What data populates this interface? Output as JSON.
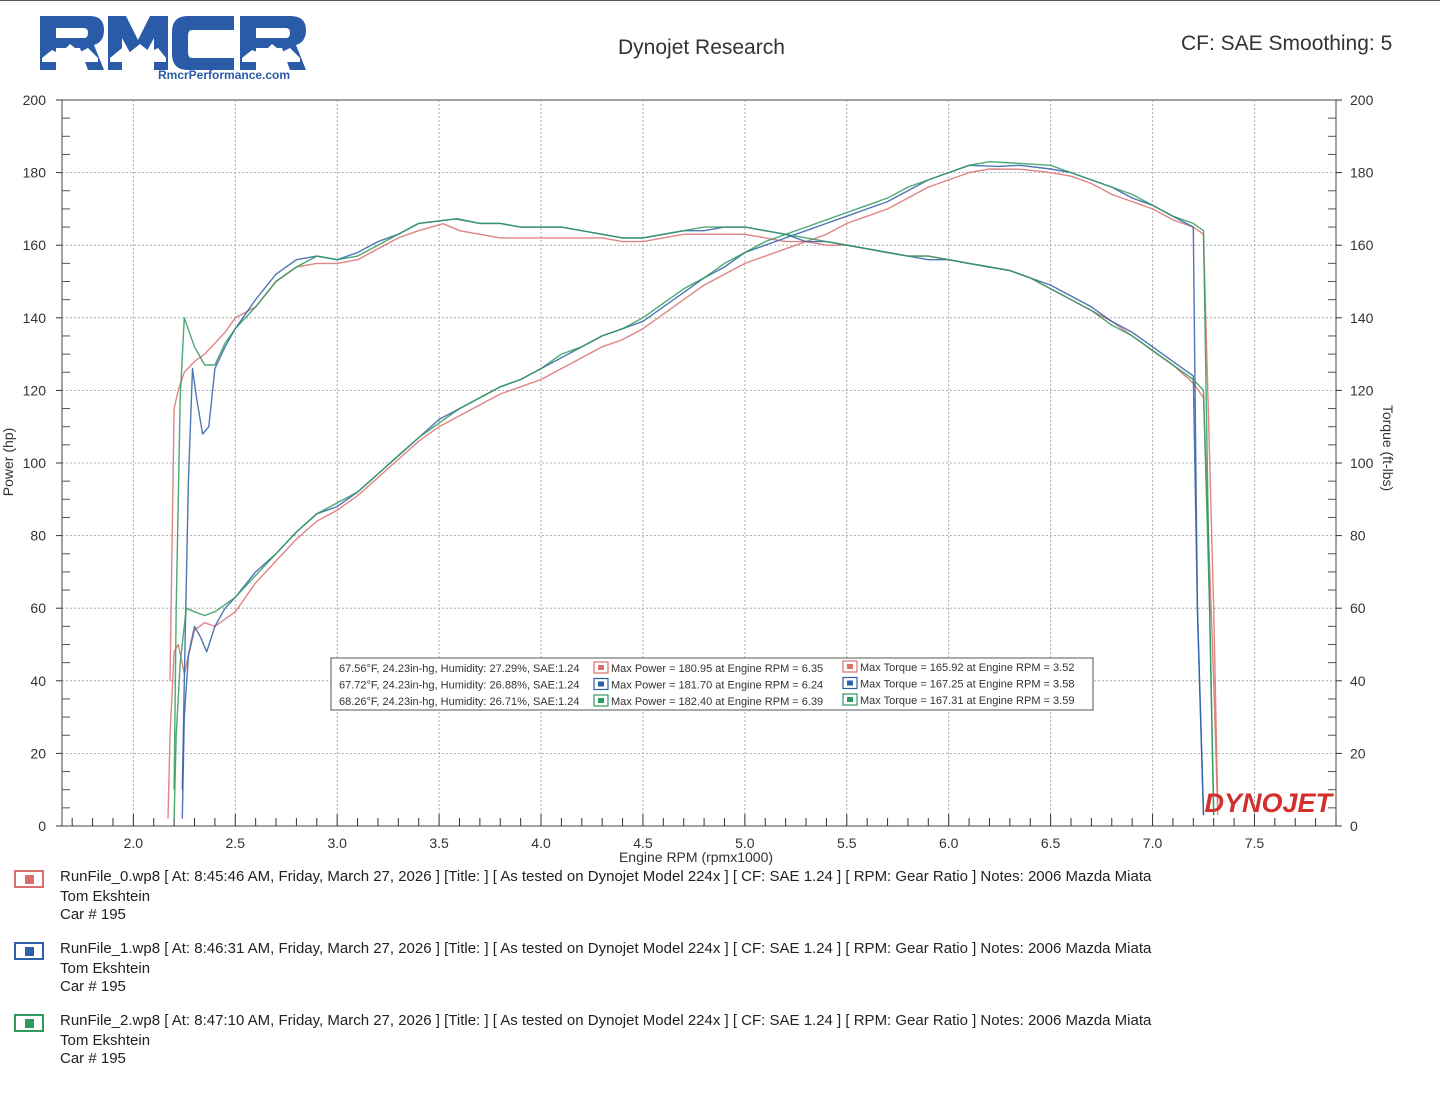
{
  "header": {
    "logo_text": "RMCR",
    "site": "RmcrPerformance.com",
    "title": "Dynojet Research",
    "cf_smoothing": "CF: SAE Smoothing: 5"
  },
  "chart_data": {
    "type": "line",
    "title": "Dynojet Research",
    "xlabel": "Engine RPM (rpmx1000)",
    "ylabel_left": "Power (hp)",
    "ylabel_right": "Torque (ft-lbs)",
    "xlim": [
      1.65,
      7.9
    ],
    "ylim_left": [
      0,
      200
    ],
    "ylim_right": [
      0,
      200
    ],
    "x_ticks": [
      2.0,
      2.5,
      3.0,
      3.5,
      4.0,
      4.5,
      5.0,
      5.5,
      6.0,
      6.5,
      7.0,
      7.5
    ],
    "x_tick_labels": [
      "2.0",
      "2.5",
      "3.0",
      "3.5",
      "4.0",
      "4.5",
      "5.0",
      "5.5",
      "6.0",
      "6.5",
      "7.0",
      "7.5"
    ],
    "y_ticks_left": [
      0,
      20,
      40,
      60,
      80,
      100,
      120,
      140,
      160,
      180,
      200
    ],
    "y_tick_labels_left": [
      "0",
      "20",
      "40",
      "60",
      "80",
      "100",
      "120",
      "140",
      "160",
      "180",
      "200"
    ],
    "y_ticks_right": [
      0,
      20,
      40,
      60,
      80,
      100,
      120,
      140,
      160,
      180,
      200
    ],
    "y_tick_labels_right": [
      "0",
      "20",
      "40",
      "60",
      "80",
      "100",
      "120",
      "140",
      "160",
      "180",
      "200"
    ],
    "grid": true,
    "watermark": "DYNOJET",
    "series": [
      {
        "name": "RunFile_0.wp8",
        "color": "#d9706e",
        "power": {
          "x": [
            2.17,
            2.18,
            2.2,
            2.22,
            2.25,
            2.3,
            2.35,
            2.4,
            2.45,
            2.5,
            2.6,
            2.7,
            2.8,
            2.9,
            3.0,
            3.1,
            3.2,
            3.3,
            3.4,
            3.5,
            3.6,
            3.7,
            3.8,
            3.9,
            4.0,
            4.1,
            4.2,
            4.3,
            4.4,
            4.5,
            4.6,
            4.7,
            4.8,
            4.9,
            5.0,
            5.1,
            5.2,
            5.3,
            5.4,
            5.5,
            5.6,
            5.7,
            5.8,
            5.9,
            6.0,
            6.1,
            6.2,
            6.35,
            6.5,
            6.6,
            6.7,
            6.8,
            6.9,
            7.0,
            7.1,
            7.2,
            7.25,
            7.3,
            7.32
          ],
          "y": [
            2,
            25,
            48,
            50,
            42,
            54,
            56,
            55,
            57,
            59,
            67,
            73,
            79,
            84,
            87,
            91,
            96,
            101,
            106,
            110,
            113,
            116,
            119,
            121,
            123,
            126,
            129,
            132,
            134,
            137,
            141,
            145,
            149,
            152,
            155,
            157,
            159,
            161,
            163,
            166,
            168,
            170,
            173,
            176,
            178,
            180,
            181,
            180.95,
            180,
            179,
            177,
            174,
            172,
            170,
            167,
            165,
            163,
            60,
            5
          ]
        },
        "torque": {
          "x": [
            2.18,
            2.2,
            2.22,
            2.25,
            2.3,
            2.35,
            2.4,
            2.45,
            2.5,
            2.6,
            2.7,
            2.8,
            2.9,
            3.0,
            3.1,
            3.2,
            3.3,
            3.4,
            3.52,
            3.6,
            3.7,
            3.8,
            3.9,
            4.0,
            4.1,
            4.2,
            4.3,
            4.4,
            4.5,
            4.6,
            4.7,
            4.8,
            4.9,
            5.0,
            5.1,
            5.2,
            5.3,
            5.4,
            5.5,
            5.6,
            5.7,
            5.8,
            5.9,
            6.0,
            6.1,
            6.2,
            6.3,
            6.4,
            6.5,
            6.6,
            6.7,
            6.8,
            6.9,
            7.0,
            7.1,
            7.2,
            7.25,
            7.3,
            7.32
          ],
          "y": [
            40,
            115,
            120,
            125,
            128,
            130,
            133,
            136,
            140,
            143,
            150,
            154,
            155,
            155,
            156,
            159,
            162,
            164,
            165.92,
            164,
            163,
            162,
            162,
            162,
            162,
            162,
            162,
            161,
            161,
            162,
            163,
            163,
            163,
            163,
            162,
            161,
            161,
            160,
            160,
            159,
            158,
            157,
            157,
            156,
            155,
            154,
            153,
            151,
            148,
            145,
            142,
            139,
            135,
            131,
            127,
            122,
            118,
            40,
            3
          ]
        },
        "max_power_label": "Max Power = 180.95 at Engine RPM = 6.35",
        "max_torque_label": "Max Torque = 165.92 at Engine RPM = 3.52",
        "conditions": "67.56°F, 24.23in-hg, Humidity: 27.29%, SAE:1.24",
        "run_line": "RunFile_0.wp8 [ At: 8:45:46 AM, Friday, March 27, 2026 ] [Title: ]  [ As tested on Dynojet Model 224x ] [ CF: SAE 1.24 ] [ RPM: Gear Ratio ] Notes: 2006 Mazda Miata",
        "owner": "Tom Ekshtein",
        "car": "Car # 195"
      },
      {
        "name": "RunFile_1.wp8",
        "color": "#2f5fa8",
        "power": {
          "x": [
            2.24,
            2.25,
            2.27,
            2.3,
            2.33,
            2.36,
            2.4,
            2.45,
            2.5,
            2.6,
            2.7,
            2.8,
            2.9,
            3.0,
            3.1,
            3.2,
            3.3,
            3.4,
            3.5,
            3.6,
            3.7,
            3.8,
            3.9,
            4.0,
            4.1,
            4.2,
            4.3,
            4.4,
            4.5,
            4.6,
            4.7,
            4.8,
            4.9,
            5.0,
            5.1,
            5.2,
            5.3,
            5.4,
            5.5,
            5.6,
            5.7,
            5.8,
            5.9,
            6.0,
            6.1,
            6.24,
            6.35,
            6.5,
            6.6,
            6.7,
            6.8,
            6.9,
            7.0,
            7.1,
            7.2,
            7.22,
            7.25
          ],
          "y": [
            2,
            30,
            47,
            55,
            52,
            48,
            55,
            60,
            63,
            70,
            75,
            81,
            86,
            88,
            92,
            97,
            102,
            107,
            112,
            115,
            118,
            121,
            123,
            126,
            129,
            132,
            135,
            137,
            139,
            143,
            147,
            151,
            154,
            158,
            160,
            162,
            164,
            166,
            168,
            170,
            172,
            175,
            178,
            180,
            182,
            181.7,
            182,
            181,
            180,
            178,
            176,
            173,
            171,
            168,
            165,
            60,
            3
          ]
        },
        "torque": {
          "x": [
            2.24,
            2.25,
            2.27,
            2.29,
            2.31,
            2.34,
            2.37,
            2.4,
            2.45,
            2.5,
            2.6,
            2.7,
            2.8,
            2.9,
            3.0,
            3.1,
            3.2,
            3.3,
            3.4,
            3.58,
            3.7,
            3.8,
            3.9,
            4.0,
            4.1,
            4.2,
            4.3,
            4.4,
            4.5,
            4.6,
            4.7,
            4.8,
            4.9,
            5.0,
            5.1,
            5.2,
            5.3,
            5.4,
            5.5,
            5.6,
            5.7,
            5.8,
            5.9,
            6.0,
            6.1,
            6.2,
            6.3,
            6.4,
            6.5,
            6.6,
            6.7,
            6.8,
            6.9,
            7.0,
            7.1,
            7.2,
            7.22,
            7.25
          ],
          "y": [
            10,
            40,
            95,
            126,
            118,
            108,
            110,
            126,
            132,
            137,
            145,
            152,
            156,
            157,
            156,
            158,
            161,
            163,
            166,
            167.25,
            166,
            166,
            165,
            165,
            165,
            164,
            163,
            162,
            162,
            163,
            164,
            164,
            165,
            165,
            164,
            163,
            161,
            161,
            160,
            159,
            158,
            157,
            156,
            156,
            155,
            154,
            153,
            151,
            149,
            146,
            143,
            139,
            136,
            132,
            128,
            124,
            60,
            3
          ]
        },
        "max_power_label": "Max Power = 181.70 at Engine RPM = 6.24",
        "max_torque_label": "Max Torque = 167.25 at Engine RPM = 3.58",
        "conditions": "67.72°F, 24.23in-hg, Humidity: 26.88%, SAE:1.24",
        "run_line": "RunFile_1.wp8 [ At: 8:46:31 AM, Friday, March 27, 2026 ] [Title: ]  [ As tested on Dynojet Model 224x ] [ CF: SAE 1.24 ] [ RPM: Gear Ratio ] Notes: 2006 Mazda Miata",
        "owner": "Tom Ekshtein",
        "car": "Car # 195"
      },
      {
        "name": "RunFile_2.wp8",
        "color": "#2e9a5e",
        "power": {
          "x": [
            2.2,
            2.21,
            2.23,
            2.26,
            2.3,
            2.35,
            2.4,
            2.45,
            2.5,
            2.6,
            2.7,
            2.8,
            2.9,
            3.0,
            3.1,
            3.2,
            3.3,
            3.4,
            3.5,
            3.6,
            3.7,
            3.8,
            3.9,
            4.0,
            4.1,
            4.2,
            4.3,
            4.4,
            4.5,
            4.6,
            4.7,
            4.8,
            4.9,
            5.0,
            5.1,
            5.2,
            5.3,
            5.4,
            5.5,
            5.6,
            5.7,
            5.8,
            5.9,
            6.0,
            6.1,
            6.2,
            6.39,
            6.5,
            6.6,
            6.7,
            6.8,
            6.9,
            7.0,
            7.1,
            7.2,
            7.25,
            7.28,
            7.3
          ],
          "y": [
            2,
            25,
            45,
            60,
            59,
            58,
            59,
            61,
            63,
            69,
            75,
            81,
            86,
            89,
            92,
            97,
            102,
            107,
            111,
            115,
            118,
            121,
            123,
            126,
            130,
            132,
            135,
            137,
            140,
            144,
            148,
            151,
            155,
            158,
            161,
            163,
            165,
            167,
            169,
            171,
            173,
            176,
            178,
            180,
            182,
            183,
            182.4,
            182,
            180,
            178,
            176,
            174,
            171,
            168,
            166,
            164,
            60,
            3
          ]
        },
        "torque": {
          "x": [
            2.2,
            2.21,
            2.23,
            2.25,
            2.3,
            2.35,
            2.4,
            2.45,
            2.5,
            2.6,
            2.7,
            2.8,
            2.9,
            3.0,
            3.1,
            3.2,
            3.3,
            3.4,
            3.59,
            3.7,
            3.8,
            3.9,
            4.0,
            4.1,
            4.2,
            4.3,
            4.4,
            4.5,
            4.6,
            4.7,
            4.8,
            4.9,
            5.0,
            5.1,
            5.2,
            5.3,
            5.4,
            5.5,
            5.6,
            5.7,
            5.8,
            5.9,
            6.0,
            6.1,
            6.2,
            6.3,
            6.4,
            6.5,
            6.6,
            6.7,
            6.8,
            6.9,
            7.0,
            7.1,
            7.2,
            7.25,
            7.28,
            7.3
          ],
          "y": [
            10,
            60,
            118,
            140,
            132,
            127,
            127,
            133,
            137,
            143,
            150,
            154,
            157,
            156,
            157,
            160,
            163,
            166,
            167.31,
            166,
            166,
            165,
            165,
            165,
            164,
            163,
            162,
            162,
            163,
            164,
            165,
            165,
            165,
            164,
            163,
            162,
            161,
            160,
            159,
            158,
            157,
            157,
            156,
            155,
            154,
            153,
            151,
            148,
            145,
            142,
            138,
            135,
            131,
            127,
            123,
            120,
            60,
            3
          ]
        },
        "max_power_label": "Max Power = 182.40 at Engine RPM = 6.39",
        "max_torque_label": "Max Torque = 167.31 at Engine RPM = 3.59",
        "conditions": "68.26°F, 24.23in-hg, Humidity: 26.71%, SAE:1.24",
        "run_line": "RunFile_2.wp8 [ At: 8:47:10 AM, Friday, March 27, 2026 ] [Title: ]  [ As tested on Dynojet Model 224x ] [ CF: SAE 1.24 ] [ RPM: Gear Ratio ] Notes: 2006 Mazda Miata",
        "owner": "Tom Ekshtein",
        "car": "Car # 195"
      }
    ]
  },
  "colors": {
    "run0": "#d9706e",
    "run1": "#2f5fa8",
    "run2": "#2e9a5e",
    "logo_blue": "#2a5ba8",
    "watermark_red": "#d32f2f"
  }
}
